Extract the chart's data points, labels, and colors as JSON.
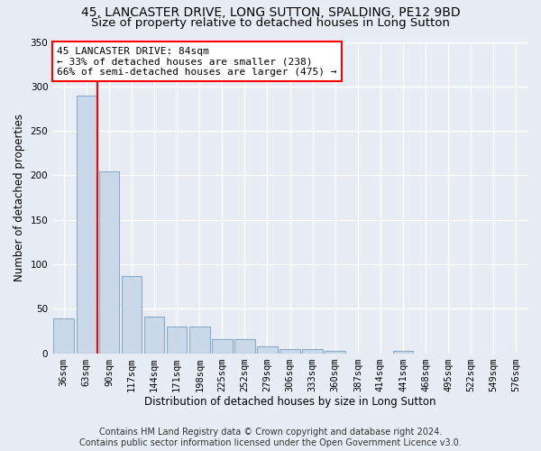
{
  "title": "45, LANCASTER DRIVE, LONG SUTTON, SPALDING, PE12 9BD",
  "subtitle": "Size of property relative to detached houses in Long Sutton",
  "xlabel": "Distribution of detached houses by size in Long Sutton",
  "ylabel": "Number of detached properties",
  "footer_line1": "Contains HM Land Registry data © Crown copyright and database right 2024.",
  "footer_line2": "Contains public sector information licensed under the Open Government Licence v3.0.",
  "bar_labels": [
    "36sqm",
    "63sqm",
    "90sqm",
    "117sqm",
    "144sqm",
    "171sqm",
    "198sqm",
    "225sqm",
    "252sqm",
    "279sqm",
    "306sqm",
    "333sqm",
    "360sqm",
    "387sqm",
    "414sqm",
    "441sqm",
    "468sqm",
    "495sqm",
    "522sqm",
    "549sqm",
    "576sqm"
  ],
  "bar_values": [
    39,
    290,
    204,
    87,
    41,
    30,
    30,
    16,
    16,
    8,
    5,
    5,
    3,
    0,
    0,
    3,
    0,
    0,
    0,
    0,
    0
  ],
  "bar_color": "#c9d9ea",
  "bar_edge_color": "#8aaac5",
  "vline_x": 2.0,
  "vline_color": "red",
  "annotation_text": "45 LANCASTER DRIVE: 84sqm\n← 33% of detached houses are smaller (238)\n66% of semi-detached houses are larger (475) →",
  "annotation_box_color": "white",
  "annotation_box_edge": "red",
  "ylim": [
    0,
    350
  ],
  "yticks": [
    0,
    50,
    100,
    150,
    200,
    250,
    300,
    350
  ],
  "bg_color": "#e8edf5",
  "plot_bg_color": "#e8edf5",
  "grid_color": "white",
  "title_fontsize": 10,
  "subtitle_fontsize": 9.5,
  "axis_label_fontsize": 8.5,
  "tick_fontsize": 7.5,
  "footer_fontsize": 7
}
